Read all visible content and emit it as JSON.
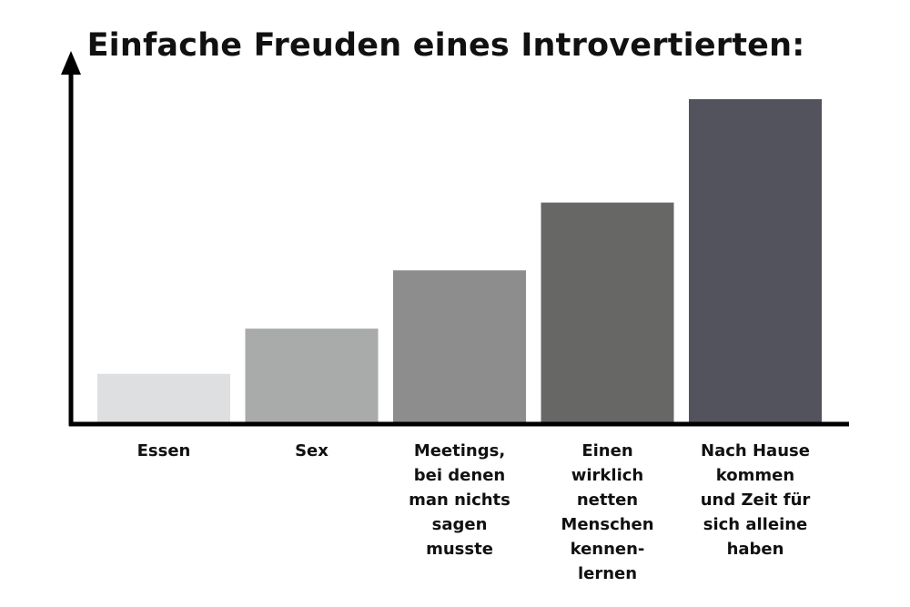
{
  "chart_data": {
    "type": "bar",
    "title": "Einfache Freuden eines Introvertierten:",
    "xlabel": "",
    "ylabel": "",
    "categories": [
      "Essen",
      "Sex",
      "Meetings,\nbei denen\nman nichts\nsagen\nmusste",
      "Einen\nwirklich\nnetten\nMenschen\nkennen-\nlernen",
      "Nach Hause\nkommen\nund Zeit für\nsich alleine\nhaben"
    ],
    "values": [
      15,
      29,
      47,
      68,
      100
    ],
    "ylim": [
      0,
      100
    ],
    "colors": [
      "#dedfe0",
      "#a9aaaa",
      "#8c8d8c",
      "#676866",
      "#53535e"
    ],
    "axis_color": "#000000",
    "grid": false,
    "legend": "none"
  }
}
